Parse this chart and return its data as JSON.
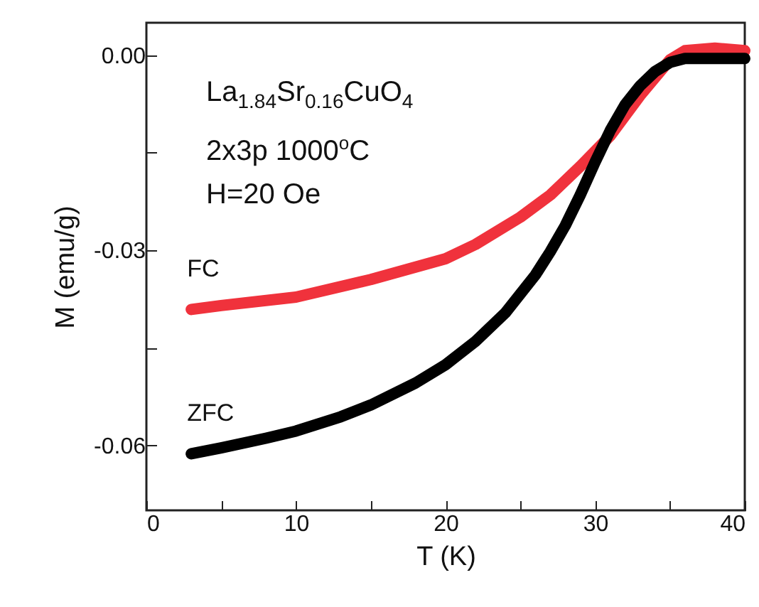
{
  "chart_data": {
    "type": "line",
    "xlabel": "T (K)",
    "ylabel": "M (emu/g)",
    "annotations": [
      "La$_{1.84}$Sr$_{0.16}$CuO$_{4}$",
      "2x3p 1000$^{o}$C",
      "H=20 Oe"
    ],
    "xlim": [
      0,
      40
    ],
    "xticks": [
      0,
      {
        "value": 5,
        "label": null
      },
      10,
      {
        "value": 15,
        "label": null
      },
      20,
      {
        "value": 25,
        "label": null
      },
      30,
      {
        "value": 35,
        "label": null
      },
      40
    ],
    "ylim": [
      -0.07,
      0.005
    ],
    "yticks": [
      {
        "value": 0,
        "label": "0.00"
      },
      {
        "value": -0.015,
        "label": null
      },
      {
        "value": -0.03,
        "label": "-0.03"
      },
      {
        "value": -0.045,
        "label": null
      },
      {
        "value": -0.06,
        "label": "-0.06"
      }
    ],
    "grid": false,
    "series": [
      {
        "name": "FC",
        "color": "#f0323c",
        "x": [
          3,
          5,
          10,
          15,
          20,
          22,
          25,
          27,
          29,
          31,
          33,
          35,
          36,
          38,
          40
        ],
        "values": [
          -0.0391,
          -0.0385,
          -0.0372,
          -0.0345,
          -0.0313,
          -0.0291,
          -0.0249,
          -0.0215,
          -0.0171,
          -0.0124,
          -0.0062,
          -0.0007,
          0.0007,
          0.0011,
          0.0007
        ]
      },
      {
        "name": "ZFC",
        "color": "#000000",
        "x": [
          3,
          5,
          8,
          10,
          13,
          15,
          18,
          20,
          22,
          24,
          26,
          27,
          28,
          29,
          30,
          31,
          32,
          33,
          34,
          35,
          36,
          38,
          40
        ],
        "values": [
          -0.0613,
          -0.0604,
          -0.0589,
          -0.0578,
          -0.0556,
          -0.0538,
          -0.0504,
          -0.0476,
          -0.044,
          -0.0396,
          -0.0338,
          -0.0302,
          -0.0262,
          -0.0215,
          -0.0164,
          -0.0116,
          -0.0076,
          -0.0047,
          -0.0025,
          -0.0011,
          -0.0005,
          -0.0005,
          -0.0005
        ]
      }
    ]
  }
}
